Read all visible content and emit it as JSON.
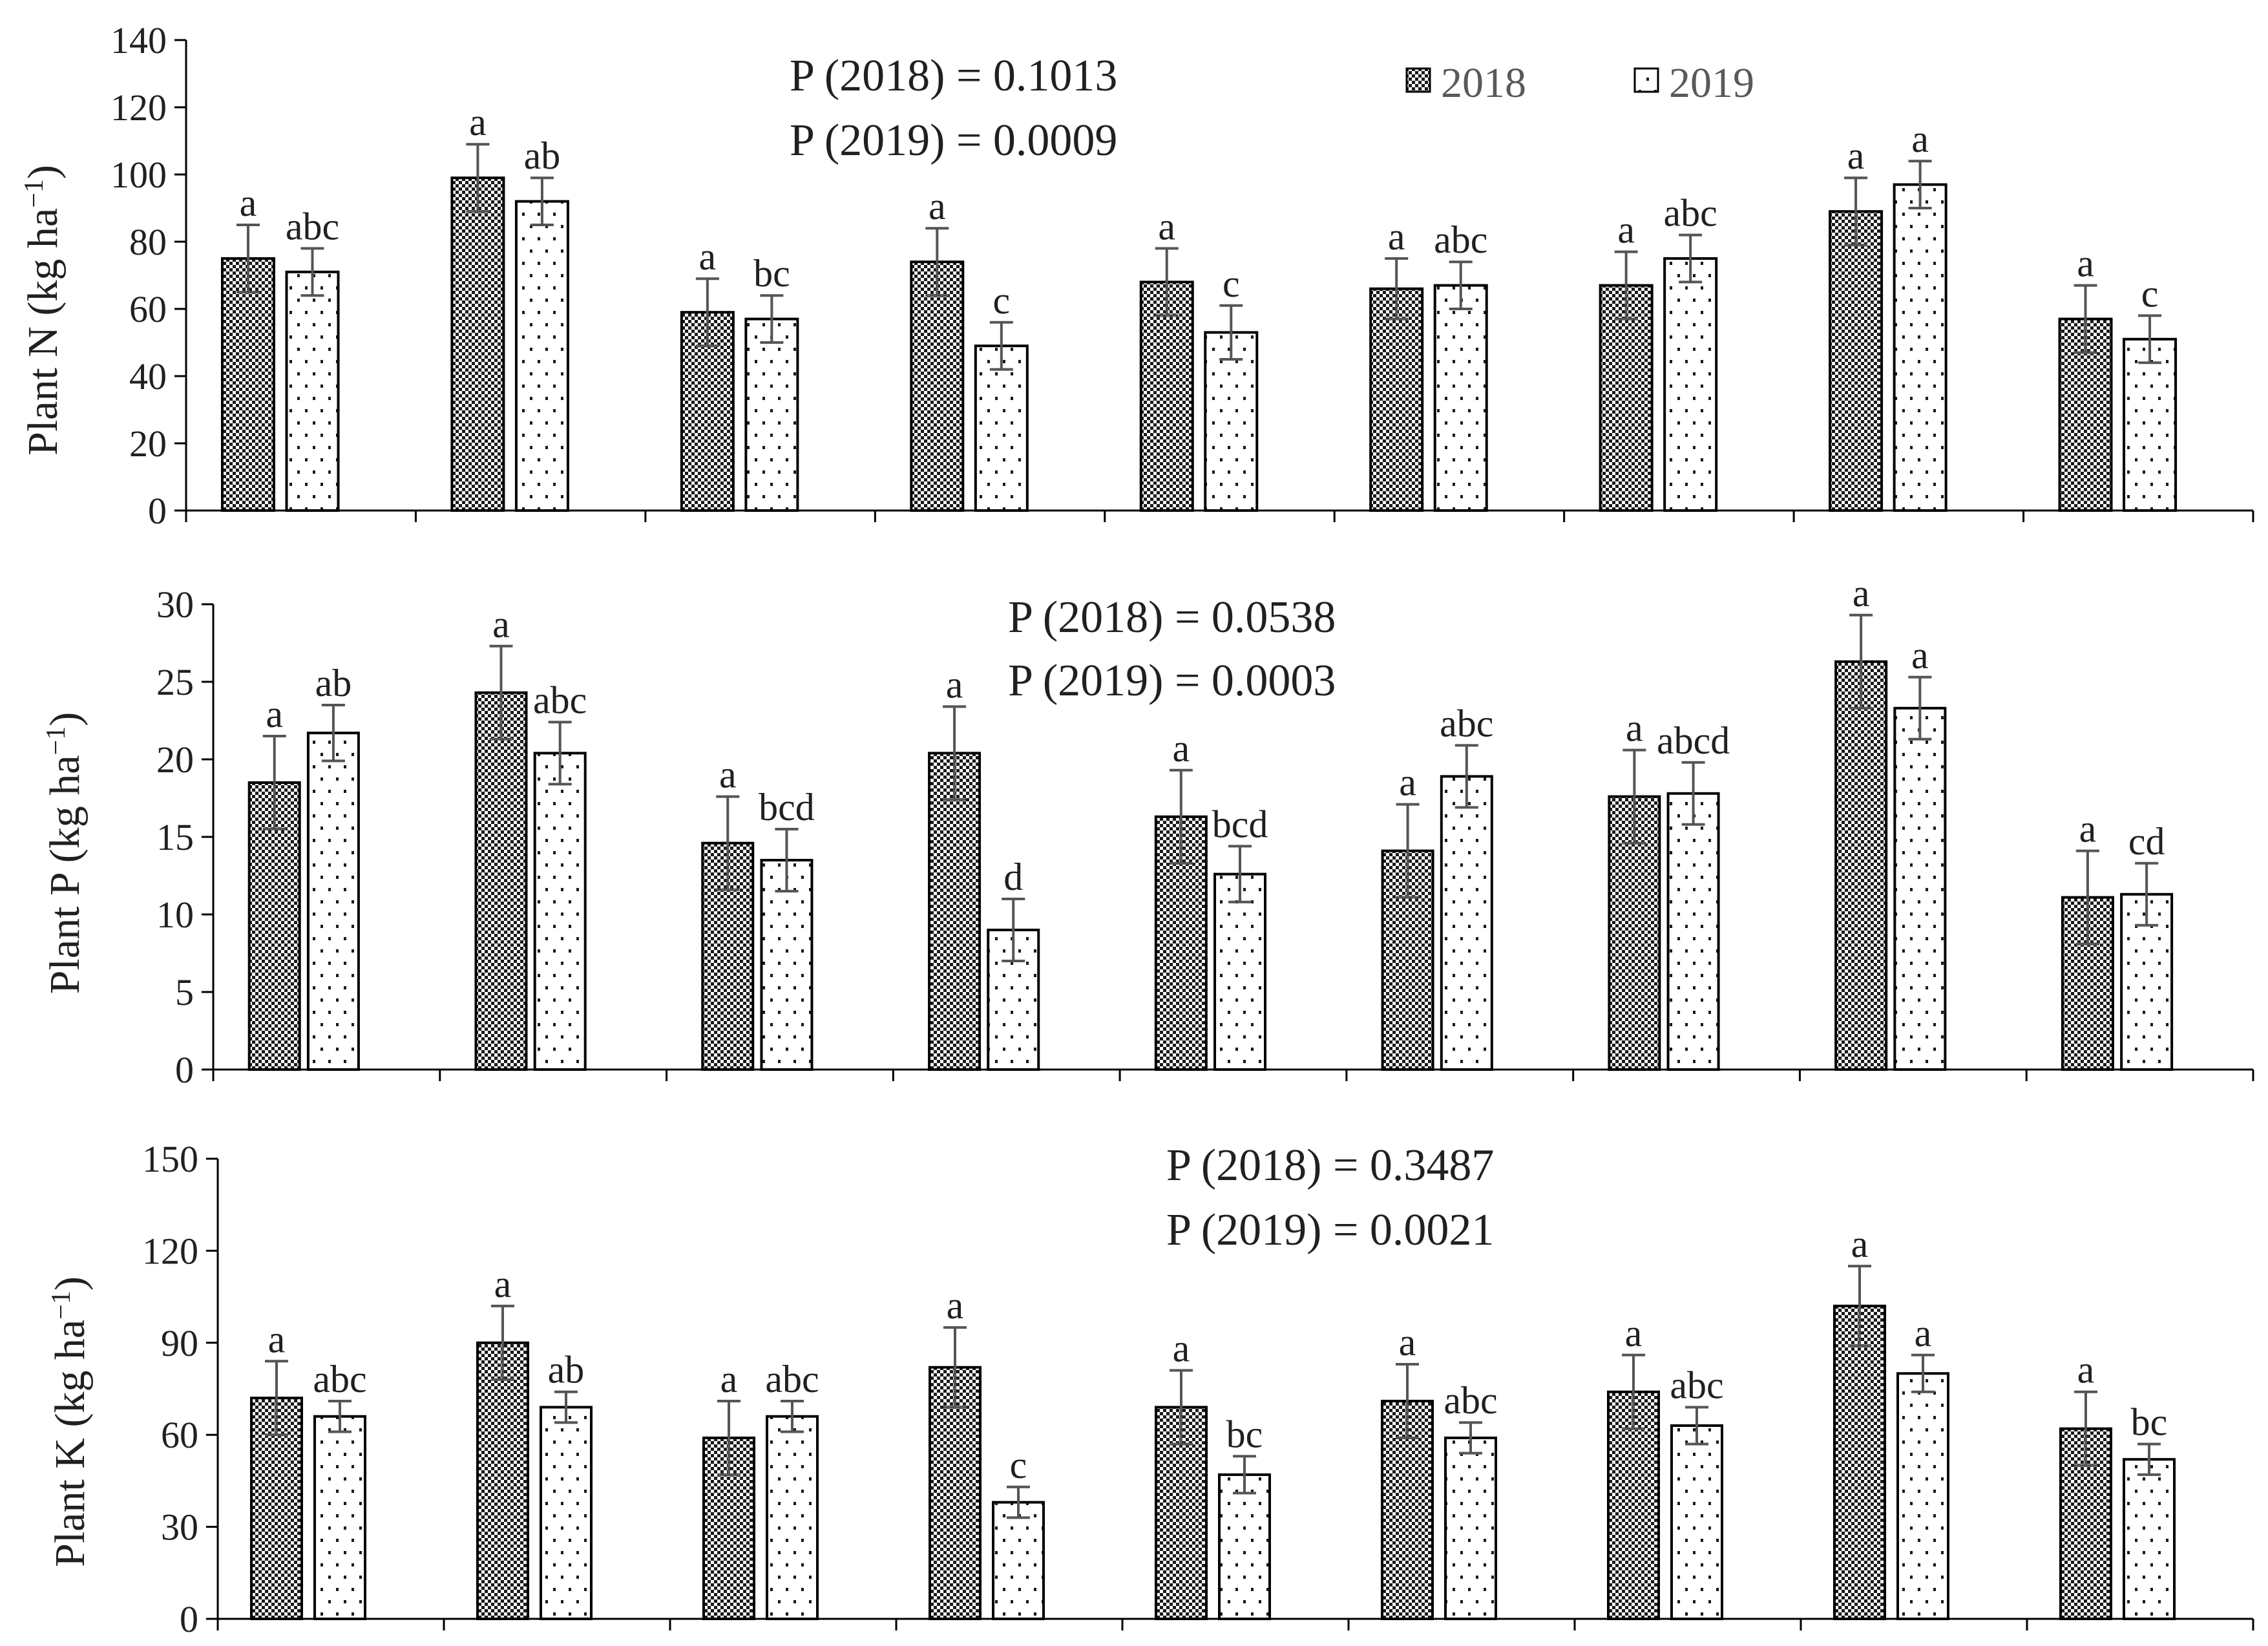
{
  "chart_data": [
    {
      "type": "bar",
      "ylabel": "Plant N (kg ha⁻¹)",
      "ylabel_main": "Plant N (kg ha",
      "ylabel_exp": "−1",
      "ylabel_close": ")",
      "ylim": [
        0,
        140
      ],
      "yticks": [
        0,
        20,
        40,
        60,
        80,
        100,
        120,
        140
      ],
      "categories": [
        "",
        "",
        "",
        "",
        "",
        "",
        "",
        "",
        ""
      ],
      "legend": {
        "placement": "top-right",
        "entries": [
          "2018",
          "2019"
        ]
      },
      "p_values": [
        "P (2018) = 0.1013",
        "P (2019) = 0.0009"
      ],
      "series": [
        {
          "name": "2018",
          "pattern": "checker",
          "values": [
            75,
            99,
            59,
            74,
            68,
            66,
            67,
            89,
            57
          ],
          "errors": [
            10,
            10,
            10,
            10,
            10,
            9,
            10,
            10,
            10
          ],
          "letters": [
            "a",
            "a",
            "a",
            "a",
            "a",
            "a",
            "a",
            "a",
            "a"
          ]
        },
        {
          "name": "2019",
          "pattern": "dots",
          "values": [
            71,
            92,
            57,
            49,
            53,
            67,
            75,
            97,
            51
          ],
          "errors": [
            7,
            7,
            7,
            7,
            8,
            7,
            7,
            7,
            7
          ],
          "letters": [
            "abc",
            "ab",
            "bc",
            "c",
            "c",
            "abc",
            "abc",
            "a",
            "c"
          ]
        }
      ]
    },
    {
      "type": "bar",
      "ylabel": "Plant P (kg ha⁻¹)",
      "ylabel_main": "Plant P (kg ha",
      "ylabel_exp": "−1",
      "ylabel_close": ")",
      "ylim": [
        0,
        30
      ],
      "yticks": [
        0,
        5,
        10,
        15,
        20,
        25,
        30
      ],
      "categories": [
        "",
        "",
        "",
        "",
        "",
        "",
        "",
        "",
        ""
      ],
      "p_values": [
        "P (2018) = 0.0538",
        "P (2019) = 0.0003"
      ],
      "series": [
        {
          "name": "2018",
          "pattern": "checker",
          "values": [
            18.5,
            24.3,
            14.6,
            20.4,
            16.3,
            14.1,
            17.6,
            26.3,
            11.1
          ],
          "errors": [
            3,
            3,
            3,
            3,
            3,
            3,
            3,
            3,
            3
          ],
          "letters": [
            "a",
            "a",
            "a",
            "a",
            "a",
            "a",
            "a",
            "a",
            "a"
          ]
        },
        {
          "name": "2019",
          "pattern": "dots",
          "values": [
            21.7,
            20.4,
            13.5,
            9.0,
            12.6,
            18.9,
            17.8,
            23.3,
            11.3
          ],
          "errors": [
            1.8,
            2.0,
            2.0,
            2.0,
            1.8,
            2.0,
            2.0,
            2.0,
            2.0
          ],
          "letters": [
            "ab",
            "abc",
            "bcd",
            "d",
            "bcd",
            "abc",
            "abcd",
            "a",
            "cd"
          ]
        }
      ]
    },
    {
      "type": "bar",
      "ylabel": "Plant K (kg ha⁻¹)",
      "ylabel_main": "Plant K (kg ha",
      "ylabel_exp": "−1",
      "ylabel_close": ")",
      "ylim": [
        0,
        150
      ],
      "yticks": [
        0,
        30,
        60,
        90,
        120,
        150
      ],
      "categories": [
        "",
        "",
        "",
        "",
        "",
        "",
        "",
        "",
        ""
      ],
      "p_values": [
        "P (2018) = 0.3487",
        "P (2019) = 0.0021"
      ],
      "series": [
        {
          "name": "2018",
          "pattern": "checker",
          "values": [
            72,
            90,
            59,
            82,
            69,
            71,
            74,
            102,
            62
          ],
          "errors": [
            12,
            12,
            12,
            13,
            12,
            12,
            12,
            13,
            12
          ],
          "letters": [
            "a",
            "a",
            "a",
            "a",
            "a",
            "a",
            "a",
            "a",
            "a"
          ]
        },
        {
          "name": "2019",
          "pattern": "dots",
          "values": [
            66,
            69,
            66,
            38,
            47,
            59,
            63,
            80,
            52
          ],
          "errors": [
            5,
            5,
            5,
            5,
            6,
            5,
            6,
            6,
            5
          ],
          "letters": [
            "abc",
            "ab",
            "abc",
            "c",
            "bc",
            "abc",
            "abc",
            "a",
            "bc"
          ]
        }
      ]
    }
  ]
}
